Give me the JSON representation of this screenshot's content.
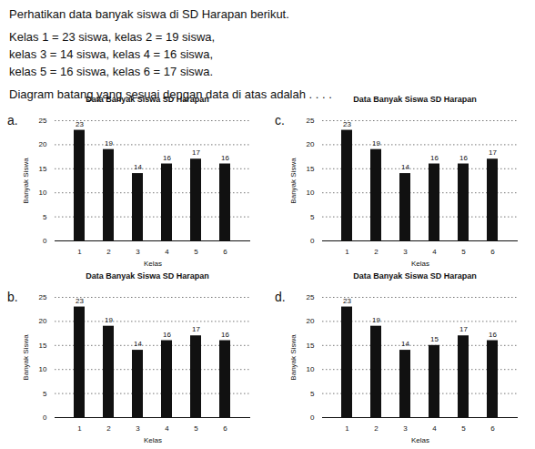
{
  "question": [
    "Perhatikan data banyak siswa di SD Harapan berikut.",
    "Kelas 1 = 23 siswa, kelas 2 = 19 siswa,",
    "kelas 3 = 14 siswa, kelas 4 = 16 siswa,",
    "kelas 5 = 16 siswa, kelas 6 = 17 siswa.",
    "Diagram batang yang sesuai dengan data di atas adalah . . . ."
  ],
  "chart_data": [
    {
      "option": "a.",
      "type": "bar",
      "title": "Data Banyak Siswa SD Harapan",
      "x_label": "Kelas",
      "y_label": "Banyak Siswa",
      "categories": [
        "1",
        "2",
        "3",
        "4",
        "5",
        "6"
      ],
      "values": [
        23,
        19,
        14,
        16,
        17,
        16
      ],
      "color": "#111111",
      "ylim": [
        0,
        25
      ],
      "yticks": [
        0,
        5,
        10,
        15,
        20,
        25
      ],
      "grid": true,
      "data_labels": true
    },
    {
      "option": "c.",
      "type": "bar",
      "title": "Data Banyak Siswa SD Harapan",
      "x_label": "Kelas",
      "y_label": "Banyak Siswa",
      "categories": [
        "1",
        "2",
        "3",
        "4",
        "5",
        "6"
      ],
      "values": [
        23,
        19,
        14,
        16,
        16,
        17
      ],
      "color": "#111111",
      "ylim": [
        0,
        25
      ],
      "yticks": [
        0,
        5,
        10,
        15,
        20,
        25
      ],
      "grid": true,
      "data_labels": true
    },
    {
      "option": "b.",
      "type": "bar",
      "title": "Data Banyak Siswa SD Harapan",
      "x_label": "Kelas",
      "y_label": "Banyak Siswa",
      "categories": [
        "1",
        "2",
        "3",
        "4",
        "5",
        "6"
      ],
      "values": [
        23,
        19,
        14,
        16,
        17,
        16
      ],
      "color": "#111111",
      "ylim": [
        0,
        25
      ],
      "yticks": [
        0,
        5,
        10,
        15,
        20,
        25
      ],
      "grid": true,
      "data_labels": true
    },
    {
      "option": "d.",
      "type": "bar",
      "title": "Data Banyak Siswa SD Harapan",
      "x_label": "Kelas",
      "y_label": "Banyak Siswa",
      "categories": [
        "1",
        "2",
        "3",
        "4",
        "5",
        "6"
      ],
      "values": [
        23,
        19,
        14,
        15,
        17,
        16
      ],
      "color": "#111111",
      "ylim": [
        0,
        25
      ],
      "yticks": [
        0,
        5,
        10,
        15,
        20,
        25
      ],
      "grid": true,
      "data_labels": true
    }
  ]
}
